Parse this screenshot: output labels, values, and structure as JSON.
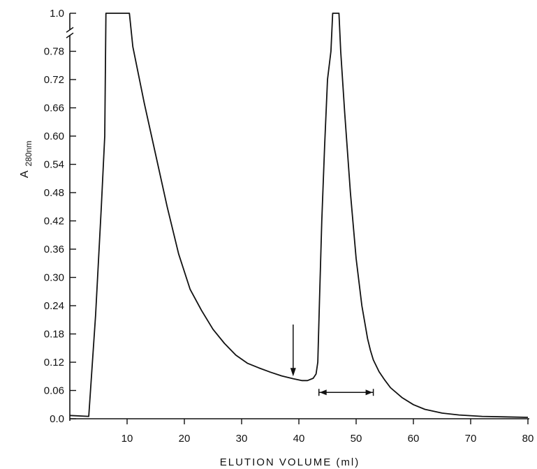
{
  "chart_data": {
    "type": "line",
    "title": "",
    "xlabel": "ELUTION VOLUME (ml)",
    "ylabel": {
      "main": "A",
      "sub": "280nm"
    },
    "xlim": [
      0,
      80
    ],
    "ylim": [
      0,
      1.0
    ],
    "y_axis_break": {
      "from": 0.81,
      "to": 1.0
    },
    "x_ticks": [
      {
        "value": 10,
        "label": "10"
      },
      {
        "value": 20,
        "label": "20"
      },
      {
        "value": 30,
        "label": "30"
      },
      {
        "value": 40,
        "label": "40"
      },
      {
        "value": 50,
        "label": "50"
      },
      {
        "value": 60,
        "label": "60"
      },
      {
        "value": 70,
        "label": "70"
      },
      {
        "value": 80,
        "label": "80"
      }
    ],
    "y_ticks": [
      {
        "value": 0.0,
        "label": "0.0"
      },
      {
        "value": 0.06,
        "label": "0.06"
      },
      {
        "value": 0.12,
        "label": "0.12"
      },
      {
        "value": 0.18,
        "label": "0.18"
      },
      {
        "value": 0.24,
        "label": "0.24"
      },
      {
        "value": 0.3,
        "label": "0.30"
      },
      {
        "value": 0.36,
        "label": "0.36"
      },
      {
        "value": 0.42,
        "label": "0.42"
      },
      {
        "value": 0.48,
        "label": "0.48"
      },
      {
        "value": 0.54,
        "label": "0.54"
      },
      {
        "value": 0.6,
        "label": "0.60"
      },
      {
        "value": 0.66,
        "label": "0.66"
      },
      {
        "value": 0.72,
        "label": "0.72"
      },
      {
        "value": 0.78,
        "label": "0.78"
      },
      {
        "value": 1.0,
        "label": "1.0"
      }
    ],
    "grid": false,
    "series": [
      {
        "x": [
          0,
          3.3,
          4.5,
          5.5,
          6.1,
          6.3,
          8,
          10,
          10.4,
          11,
          13,
          15,
          17,
          19,
          21,
          23,
          25,
          27,
          29,
          31,
          33,
          35,
          37,
          39,
          40.5,
          41.5,
          42.5,
          43,
          43.3,
          43.6,
          44,
          44.5,
          45,
          45.6,
          45.9,
          47,
          47.3,
          48,
          49,
          50,
          51,
          52,
          52.5,
          53,
          54,
          55,
          56,
          58,
          60,
          62,
          65,
          68,
          72,
          76,
          80
        ],
        "y": [
          0.007,
          0.005,
          0.22,
          0.45,
          0.6,
          1.0,
          1.0,
          1.0,
          1.0,
          0.79,
          0.67,
          0.56,
          0.45,
          0.35,
          0.275,
          0.23,
          0.19,
          0.16,
          0.135,
          0.118,
          0.108,
          0.099,
          0.091,
          0.085,
          0.081,
          0.081,
          0.086,
          0.095,
          0.12,
          0.25,
          0.42,
          0.58,
          0.72,
          0.78,
          1.0,
          1.0,
          0.78,
          0.65,
          0.48,
          0.34,
          0.24,
          0.17,
          0.145,
          0.125,
          0.1,
          0.082,
          0.066,
          0.045,
          0.03,
          0.02,
          0.012,
          0.008,
          0.005,
          0.004,
          0.003
        ]
      }
    ],
    "annotations": {
      "arrow": {
        "x": 39,
        "y_top": 0.2,
        "y_tip": 0.09
      },
      "range_bar": {
        "x1": 43.5,
        "x2": 53,
        "y": 0.056
      }
    }
  }
}
